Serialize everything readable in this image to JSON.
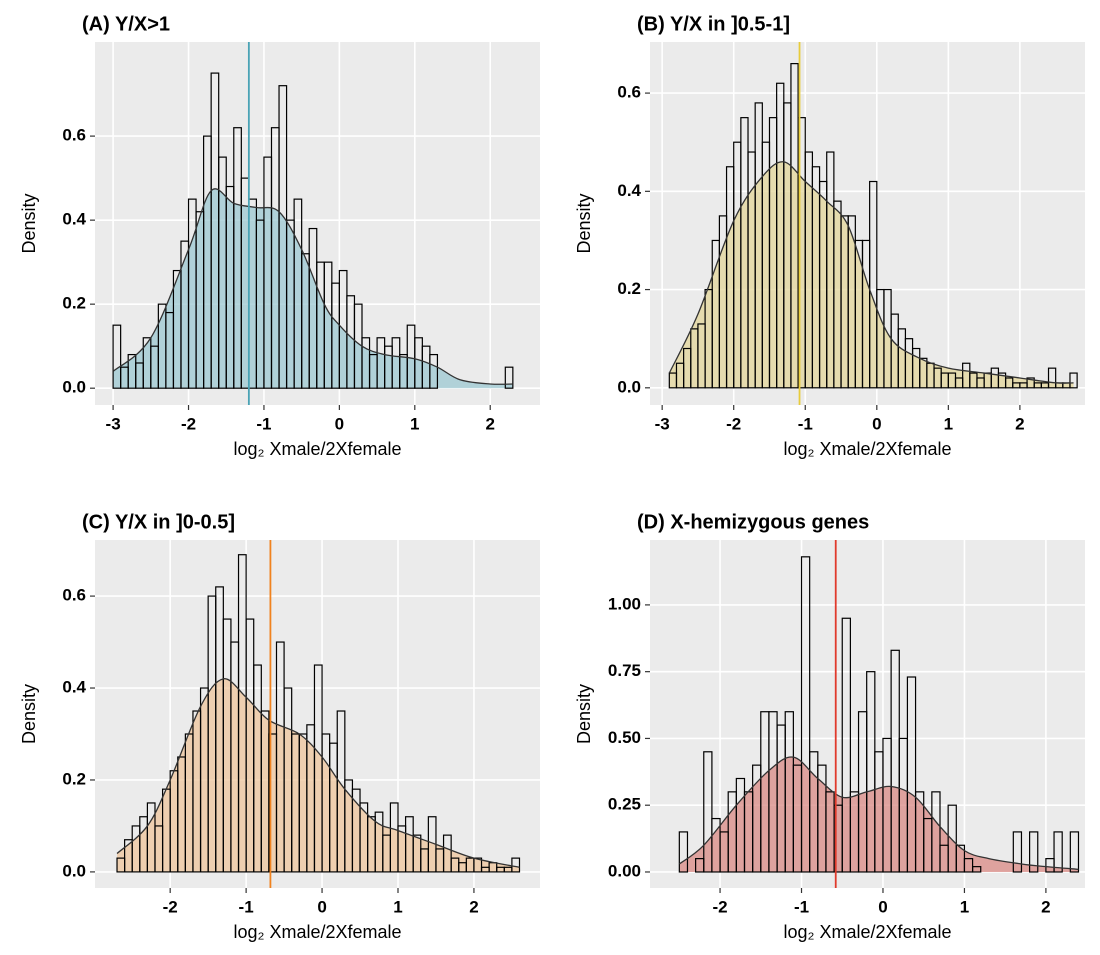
{
  "chart_data": [
    {
      "type": "histogram",
      "title": "(A) Y/X>1",
      "xlabel": "log₂ Xmale/2Xfemale",
      "ylabel": "Density",
      "bins": [
        -3.0,
        -2.9,
        -2.8,
        -2.7,
        -2.6,
        -2.5,
        -2.4,
        -2.3,
        -2.2,
        -2.1,
        -2.0,
        -1.9,
        -1.8,
        -1.7,
        -1.6,
        -1.5,
        -1.4,
        -1.3,
        -1.2,
        -1.1,
        -1.0,
        -0.9,
        -0.8,
        -0.7,
        -0.6,
        -0.5,
        -0.4,
        -0.3,
        -0.2,
        -0.1,
        0.0,
        0.1,
        0.2,
        0.3,
        0.4,
        0.5,
        0.6,
        0.7,
        0.8,
        0.9,
        1.0,
        1.1,
        1.2,
        1.3,
        1.4,
        1.5,
        1.6,
        1.7,
        1.8,
        1.9,
        2.0,
        2.1,
        2.2,
        2.3
      ],
      "counts": [
        0.15,
        0.05,
        0.08,
        0.06,
        0.12,
        0.1,
        0.2,
        0.18,
        0.28,
        0.35,
        0.45,
        0.42,
        0.6,
        0.75,
        0.55,
        0.48,
        0.62,
        0.5,
        0.45,
        0.4,
        0.55,
        0.62,
        0.72,
        0.4,
        0.45,
        0.32,
        0.38,
        0.3,
        0.3,
        0.25,
        0.28,
        0.22,
        0.2,
        0.12,
        0.08,
        0.12,
        0.1,
        0.12,
        0.08,
        0.15,
        0.12,
        0.1,
        0.08,
        0,
        0,
        0,
        0,
        0,
        0,
        0,
        0,
        0,
        0.05
      ],
      "density": {
        "x": [
          -3,
          -2.5,
          -2,
          -1.7,
          -1.4,
          -1.1,
          -0.8,
          -0.5,
          -0.2,
          0,
          0.3,
          0.6,
          1,
          1.3,
          1.6,
          2,
          2.3
        ],
        "y": [
          0.04,
          0.12,
          0.33,
          0.47,
          0.44,
          0.43,
          0.42,
          0.33,
          0.2,
          0.15,
          0.1,
          0.08,
          0.07,
          0.05,
          0.02,
          0.01,
          0.01
        ]
      },
      "mean_line": -1.2,
      "line_color": "#4aa3b5",
      "fill_color": "#9cc8d2",
      "xlim": [
        -3.24,
        2.66
      ],
      "ylim": [
        -0.04,
        0.824
      ],
      "xticks": [
        -3,
        -2,
        -1,
        0,
        1,
        2
      ],
      "yticks": [
        {
          "value": 0,
          "label": "0.0"
        },
        {
          "value": 0.2,
          "label": "0.2"
        },
        {
          "value": 0.4,
          "label": "0.4"
        },
        {
          "value": 0.6,
          "label": "0.6"
        }
      ],
      "grid": true
    },
    {
      "type": "histogram",
      "title": "(B) Y/X in ]0.5-1]",
      "xlabel": "log₂ Xmale/2Xfemale",
      "ylabel": "Density",
      "bins": [
        -2.9,
        -2.8,
        -2.7,
        -2.6,
        -2.5,
        -2.4,
        -2.3,
        -2.2,
        -2.1,
        -2.0,
        -1.9,
        -1.8,
        -1.7,
        -1.6,
        -1.5,
        -1.4,
        -1.3,
        -1.2,
        -1.1,
        -1.0,
        -0.9,
        -0.8,
        -0.7,
        -0.6,
        -0.5,
        -0.4,
        -0.3,
        -0.2,
        -0.1,
        0.0,
        0.1,
        0.2,
        0.3,
        0.4,
        0.5,
        0.6,
        0.7,
        0.8,
        0.9,
        1.0,
        1.1,
        1.2,
        1.3,
        1.4,
        1.5,
        1.6,
        1.7,
        1.8,
        1.9,
        2.0,
        2.1,
        2.2,
        2.3,
        2.4,
        2.5,
        2.6,
        2.7,
        2.8
      ],
      "counts": [
        0.03,
        0.05,
        0.08,
        0.12,
        0.13,
        0.2,
        0.3,
        0.35,
        0.45,
        0.5,
        0.55,
        0.48,
        0.58,
        0.5,
        0.55,
        0.62,
        0.58,
        0.66,
        0.55,
        0.48,
        0.45,
        0.42,
        0.48,
        0.38,
        0.35,
        0.35,
        0.3,
        0.3,
        0.42,
        0.2,
        0.2,
        0.15,
        0.12,
        0.1,
        0.08,
        0.06,
        0.05,
        0.04,
        0.03,
        0.03,
        0.02,
        0.05,
        0.03,
        0.02,
        0.03,
        0.04,
        0.03,
        0.02,
        0.01,
        0.01,
        0.02,
        0.01,
        0.01,
        0.04,
        0.01,
        0.01,
        0.03
      ],
      "density": {
        "x": [
          -2.9,
          -2.5,
          -2,
          -1.6,
          -1.3,
          -1,
          -0.7,
          -0.4,
          -0.1,
          0.2,
          0.6,
          1,
          1.5,
          2,
          2.5,
          2.75
        ],
        "y": [
          0.03,
          0.15,
          0.34,
          0.43,
          0.46,
          0.42,
          0.38,
          0.33,
          0.2,
          0.1,
          0.06,
          0.04,
          0.03,
          0.02,
          0.01,
          0.01
        ]
      },
      "mean_line": -1.08,
      "line_color": "#e8cc3c",
      "fill_color": "#e3d59a",
      "xlim": [
        -3.17,
        2.91
      ],
      "ylim": [
        -0.035,
        0.704
      ],
      "xticks": [
        -3,
        -2,
        -1,
        0,
        1,
        2
      ],
      "yticks": [
        {
          "value": 0,
          "label": "0.0"
        },
        {
          "value": 0.2,
          "label": "0.2"
        },
        {
          "value": 0.4,
          "label": "0.4"
        },
        {
          "value": 0.6,
          "label": "0.6"
        }
      ],
      "grid": true
    },
    {
      "type": "histogram",
      "title": "(C) Y/X in ]0-0.5]",
      "xlabel": "log₂ Xmale/2Xfemale",
      "ylabel": "Density",
      "bins": [
        -2.7,
        -2.6,
        -2.5,
        -2.4,
        -2.3,
        -2.2,
        -2.1,
        -2.0,
        -1.9,
        -1.8,
        -1.7,
        -1.6,
        -1.5,
        -1.4,
        -1.3,
        -1.2,
        -1.1,
        -1.0,
        -0.9,
        -0.8,
        -0.7,
        -0.6,
        -0.5,
        -0.4,
        -0.3,
        -0.2,
        -0.1,
        0.0,
        0.1,
        0.2,
        0.3,
        0.4,
        0.5,
        0.6,
        0.7,
        0.8,
        0.9,
        1.0,
        1.1,
        1.2,
        1.3,
        1.4,
        1.5,
        1.6,
        1.7,
        1.8,
        1.9,
        2.0,
        2.1,
        2.2,
        2.3,
        2.4,
        2.5,
        2.6
      ],
      "counts": [
        0.03,
        0.07,
        0.1,
        0.12,
        0.15,
        0.1,
        0.18,
        0.22,
        0.25,
        0.3,
        0.35,
        0.4,
        0.6,
        0.62,
        0.55,
        0.5,
        0.69,
        0.55,
        0.45,
        0.35,
        0.3,
        0.5,
        0.4,
        0.3,
        0.3,
        0.32,
        0.45,
        0.3,
        0.28,
        0.35,
        0.2,
        0.18,
        0.15,
        0.12,
        0.13,
        0.08,
        0.15,
        0.1,
        0.12,
        0.08,
        0.05,
        0.12,
        0.05,
        0.08,
        0.03,
        0.02,
        0.03,
        0.03,
        0.01,
        0.02,
        0.01,
        0.01,
        0.03
      ],
      "density": {
        "x": [
          -2.7,
          -2.3,
          -2,
          -1.6,
          -1.3,
          -1,
          -0.7,
          -0.3,
          0,
          0.3,
          0.7,
          1,
          1.5,
          2,
          2.6
        ],
        "y": [
          0.04,
          0.1,
          0.2,
          0.36,
          0.42,
          0.38,
          0.33,
          0.3,
          0.25,
          0.18,
          0.11,
          0.09,
          0.06,
          0.03,
          0.01
        ]
      },
      "mean_line": -0.68,
      "line_color": "#f0821e",
      "fill_color": "#efc59c",
      "xlim": [
        -2.99,
        2.87
      ],
      "ylim": [
        -0.035,
        0.722
      ],
      "xticks": [
        -2,
        -1,
        0,
        1,
        2
      ],
      "yticks": [
        {
          "value": 0,
          "label": "0.0"
        },
        {
          "value": 0.2,
          "label": "0.2"
        },
        {
          "value": 0.4,
          "label": "0.4"
        },
        {
          "value": 0.6,
          "label": "0.6"
        }
      ],
      "grid": true
    },
    {
      "type": "histogram",
      "title": "(D) X-hemizygous genes",
      "xlabel": "log₂ Xmale/2Xfemale",
      "ylabel": "Density",
      "bins": [
        -2.5,
        -2.4,
        -2.3,
        -2.2,
        -2.1,
        -2.0,
        -1.9,
        -1.8,
        -1.7,
        -1.6,
        -1.5,
        -1.4,
        -1.3,
        -1.2,
        -1.1,
        -1.0,
        -0.9,
        -0.8,
        -0.7,
        -0.6,
        -0.5,
        -0.4,
        -0.3,
        -0.2,
        -0.1,
        0.0,
        0.1,
        0.2,
        0.3,
        0.4,
        0.5,
        0.6,
        0.7,
        0.8,
        0.9,
        1.0,
        1.1,
        1.2,
        1.3,
        1.4,
        1.5,
        1.6,
        1.7,
        1.8,
        1.9,
        2.0,
        2.1,
        2.2,
        2.3,
        2.4
      ],
      "counts": [
        0.15,
        0,
        0.05,
        0.45,
        0.2,
        0.15,
        0.3,
        0.35,
        0.3,
        0.4,
        0.6,
        0.6,
        0.55,
        0.6,
        0.4,
        1.18,
        0.45,
        0.4,
        0.3,
        0.25,
        0.95,
        0.3,
        0.6,
        0.75,
        0.45,
        0.5,
        0.83,
        0.5,
        0.73,
        0.3,
        0.2,
        0.3,
        0.1,
        0.25,
        0.1,
        0.05,
        0.02,
        0,
        0,
        0,
        0,
        0.15,
        0,
        0.15,
        0,
        0.05,
        0.15,
        0,
        0.15
      ],
      "density": {
        "x": [
          -2.5,
          -2.2,
          -1.8,
          -1.4,
          -1.1,
          -0.8,
          -0.5,
          -0.2,
          0.1,
          0.4,
          0.7,
          1,
          1.3,
          1.7,
          2,
          2.4
        ],
        "y": [
          0.03,
          0.1,
          0.25,
          0.38,
          0.43,
          0.35,
          0.28,
          0.3,
          0.32,
          0.28,
          0.17,
          0.08,
          0.05,
          0.03,
          0.02,
          0.01
        ]
      },
      "mean_line": -0.58,
      "line_color": "#e03a2c",
      "fill_color": "#d98a84",
      "xlim": [
        -2.86,
        2.48
      ],
      "ylim": [
        -0.06,
        1.243
      ],
      "xticks": [
        -2,
        -1,
        0,
        1,
        2
      ],
      "yticks": [
        {
          "value": 0,
          "label": "0.00"
        },
        {
          "value": 0.25,
          "label": "0.25"
        },
        {
          "value": 0.5,
          "label": "0.50"
        },
        {
          "value": 0.75,
          "label": "0.75"
        },
        {
          "value": 1,
          "label": "1.00"
        }
      ],
      "grid": true
    }
  ]
}
